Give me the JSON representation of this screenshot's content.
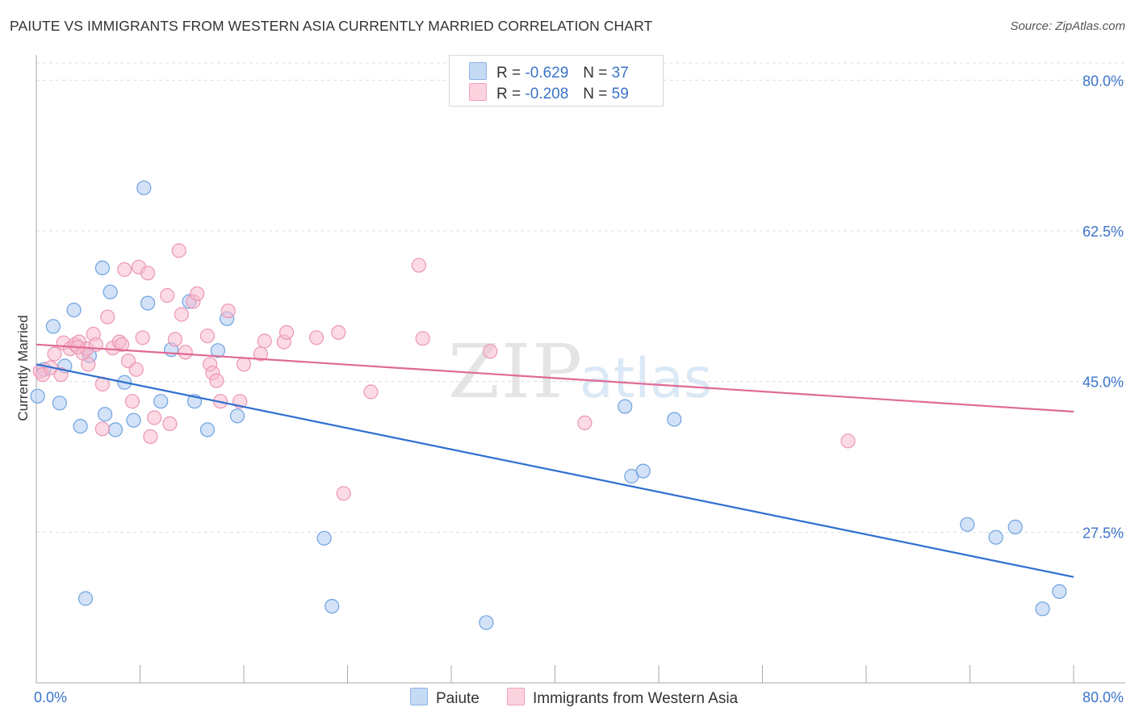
{
  "header": {
    "title": "PAIUTE VS IMMIGRANTS FROM WESTERN ASIA CURRENTLY MARRIED CORRELATION CHART",
    "source": "Source: ZipAtlas.com"
  },
  "watermark": {
    "zip": "ZIP",
    "atlas": "atlas"
  },
  "legend": {
    "rows": [
      {
        "r_label": "R =",
        "r_value": "-0.629",
        "n_label": "N =",
        "n_value": "37",
        "color": "#aecbf0"
      },
      {
        "r_label": "R =",
        "r_value": "-0.208",
        "n_label": "N =",
        "n_value": "59",
        "color": "#f7bccd"
      }
    ]
  },
  "bottom_legend": {
    "items": [
      {
        "label": "Paiute",
        "color": "#aecbf0"
      },
      {
        "label": "Immigrants from Western Asia",
        "color": "#f7bccd"
      }
    ]
  },
  "chart_data": {
    "type": "scatter",
    "title": "PAIUTE VS IMMIGRANTS FROM WESTERN ASIA CURRENTLY MARRIED CORRELATION CHART",
    "xlabel": "",
    "ylabel": "Currently Married",
    "xlim": [
      0,
      80
    ],
    "ylim": [
      10,
      82
    ],
    "x_tick_labels": [
      "0.0%",
      "80.0%"
    ],
    "y_ticks": [
      {
        "value": 80.0,
        "label": "80.0%"
      },
      {
        "value": 62.5,
        "label": "62.5%"
      },
      {
        "value": 45.0,
        "label": "45.0%"
      },
      {
        "value": 27.5,
        "label": "27.5%"
      }
    ],
    "grid": true,
    "series": [
      {
        "name": "Paiute",
        "color": "#6fa3e0",
        "fill": "#aecbf0",
        "trend_color": "#2f6fd0",
        "trend": {
          "x0": 0.0,
          "y0": 47.0,
          "x1": 80.0,
          "y1": 22.3
        },
        "points": [
          {
            "x": 0.1,
            "y": 43.3
          },
          {
            "x": 1.3,
            "y": 51.4
          },
          {
            "x": 1.8,
            "y": 42.5
          },
          {
            "x": 2.2,
            "y": 46.8
          },
          {
            "x": 2.9,
            "y": 53.3
          },
          {
            "x": 3.4,
            "y": 39.8
          },
          {
            "x": 4.1,
            "y": 48.0
          },
          {
            "x": 5.1,
            "y": 58.2
          },
          {
            "x": 5.3,
            "y": 41.2
          },
          {
            "x": 5.7,
            "y": 55.4
          },
          {
            "x": 6.1,
            "y": 39.4
          },
          {
            "x": 6.8,
            "y": 44.9
          },
          {
            "x": 7.5,
            "y": 40.5
          },
          {
            "x": 8.3,
            "y": 67.5
          },
          {
            "x": 8.6,
            "y": 54.1
          },
          {
            "x": 9.6,
            "y": 42.7
          },
          {
            "x": 10.4,
            "y": 48.7
          },
          {
            "x": 11.8,
            "y": 54.3
          },
          {
            "x": 12.2,
            "y": 42.7
          },
          {
            "x": 13.2,
            "y": 39.4
          },
          {
            "x": 14.0,
            "y": 48.6
          },
          {
            "x": 14.7,
            "y": 52.3
          },
          {
            "x": 15.5,
            "y": 41.0
          },
          {
            "x": 22.2,
            "y": 26.8
          },
          {
            "x": 22.8,
            "y": 18.9
          },
          {
            "x": 3.8,
            "y": 19.8
          },
          {
            "x": 34.7,
            "y": 17.0
          },
          {
            "x": 45.4,
            "y": 42.1
          },
          {
            "x": 45.9,
            "y": 34.0
          },
          {
            "x": 46.8,
            "y": 34.6
          },
          {
            "x": 49.2,
            "y": 40.6
          },
          {
            "x": 71.8,
            "y": 28.4
          },
          {
            "x": 74.0,
            "y": 26.9
          },
          {
            "x": 75.5,
            "y": 28.1
          },
          {
            "x": 77.6,
            "y": 18.6
          },
          {
            "x": 78.9,
            "y": 20.6
          },
          {
            "x": 0.6,
            "y": 46.4
          }
        ]
      },
      {
        "name": "Immigrants from Western Asia",
        "color": "#ec96b3",
        "fill": "#f7bccd",
        "trend_color": "#e06a94",
        "trend": {
          "x0": 0.0,
          "y0": 49.3,
          "x1": 80.0,
          "y1": 41.5
        },
        "points": [
          {
            "x": 0.3,
            "y": 46.2
          },
          {
            "x": 0.5,
            "y": 45.8
          },
          {
            "x": 1.1,
            "y": 46.6
          },
          {
            "x": 1.4,
            "y": 48.2
          },
          {
            "x": 1.9,
            "y": 45.8
          },
          {
            "x": 2.1,
            "y": 49.5
          },
          {
            "x": 2.6,
            "y": 48.8
          },
          {
            "x": 3.0,
            "y": 49.3
          },
          {
            "x": 3.3,
            "y": 49.6
          },
          {
            "x": 3.6,
            "y": 48.3
          },
          {
            "x": 3.9,
            "y": 48.8
          },
          {
            "x": 4.0,
            "y": 47.0
          },
          {
            "x": 4.4,
            "y": 50.5
          },
          {
            "x": 4.6,
            "y": 49.3
          },
          {
            "x": 5.1,
            "y": 44.7
          },
          {
            "x": 5.1,
            "y": 39.5
          },
          {
            "x": 5.5,
            "y": 52.5
          },
          {
            "x": 5.9,
            "y": 48.9
          },
          {
            "x": 6.4,
            "y": 49.6
          },
          {
            "x": 6.6,
            "y": 49.3
          },
          {
            "x": 6.8,
            "y": 58.0
          },
          {
            "x": 7.1,
            "y": 47.4
          },
          {
            "x": 7.4,
            "y": 42.7
          },
          {
            "x": 7.7,
            "y": 46.4
          },
          {
            "x": 7.9,
            "y": 58.3
          },
          {
            "x": 8.2,
            "y": 50.1
          },
          {
            "x": 8.6,
            "y": 57.6
          },
          {
            "x": 8.8,
            "y": 38.6
          },
          {
            "x": 9.1,
            "y": 40.8
          },
          {
            "x": 10.1,
            "y": 55.0
          },
          {
            "x": 10.3,
            "y": 40.1
          },
          {
            "x": 10.7,
            "y": 49.9
          },
          {
            "x": 11.0,
            "y": 60.2
          },
          {
            "x": 11.2,
            "y": 52.8
          },
          {
            "x": 11.5,
            "y": 48.4
          },
          {
            "x": 12.1,
            "y": 54.3
          },
          {
            "x": 12.4,
            "y": 55.2
          },
          {
            "x": 13.2,
            "y": 50.3
          },
          {
            "x": 13.4,
            "y": 47.0
          },
          {
            "x": 13.6,
            "y": 46.0
          },
          {
            "x": 13.9,
            "y": 45.1
          },
          {
            "x": 14.2,
            "y": 42.7
          },
          {
            "x": 14.8,
            "y": 53.2
          },
          {
            "x": 15.7,
            "y": 42.7
          },
          {
            "x": 16.0,
            "y": 47.0
          },
          {
            "x": 17.3,
            "y": 48.2
          },
          {
            "x": 17.6,
            "y": 49.7
          },
          {
            "x": 19.1,
            "y": 49.6
          },
          {
            "x": 19.3,
            "y": 50.7
          },
          {
            "x": 21.6,
            "y": 50.1
          },
          {
            "x": 23.3,
            "y": 50.7
          },
          {
            "x": 23.7,
            "y": 32.0
          },
          {
            "x": 25.8,
            "y": 43.8
          },
          {
            "x": 29.5,
            "y": 58.5
          },
          {
            "x": 29.8,
            "y": 50.0
          },
          {
            "x": 35.0,
            "y": 48.5
          },
          {
            "x": 42.3,
            "y": 40.2
          },
          {
            "x": 62.6,
            "y": 38.1
          },
          {
            "x": 3.2,
            "y": 49.0
          }
        ]
      }
    ]
  }
}
